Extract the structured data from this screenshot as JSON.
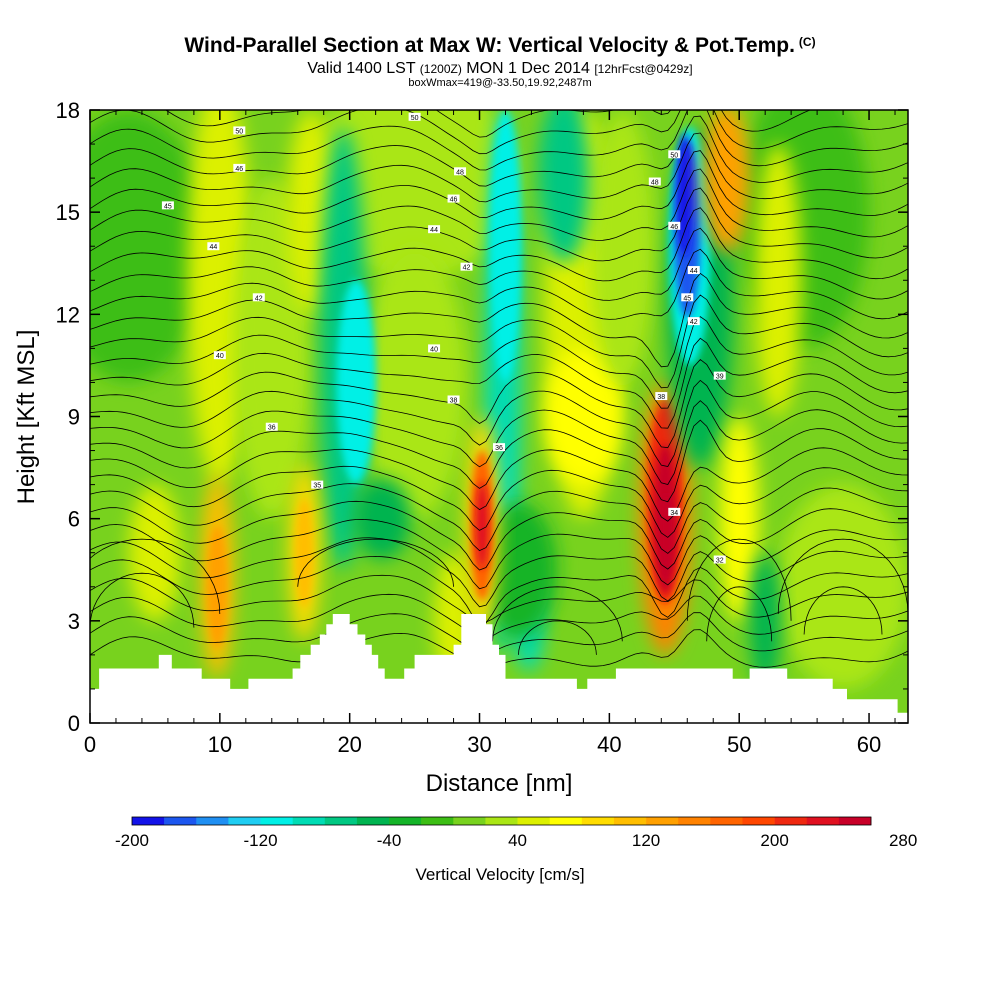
{
  "chart_data": {
    "type": "heatmap",
    "title": "Wind-Parallel Section at Max W: Vertical Velocity & Pot.Temp.",
    "title_mark": "(C)",
    "subtitle_main": "Valid 1400 LST",
    "subtitle_utc": "(1200Z)",
    "subtitle_day": "MON 1 Dec 2014",
    "subtitle_fcst": "[12hrFcst@0429z]",
    "subtitle2": "boxWmax=419@-33.50,19.92,2487m",
    "xlabel": "Distance [nm]",
    "ylabel": "Height [Kft MSL]",
    "xlim": [
      0,
      63
    ],
    "ylim": [
      0,
      18
    ],
    "x_ticks": [
      "0",
      "10",
      "20",
      "30",
      "40",
      "50",
      "60"
    ],
    "y_ticks": [
      "0",
      "3",
      "6",
      "9",
      "12",
      "15",
      "18"
    ],
    "colorbar": {
      "label": "Vertical Velocity [cm/s]",
      "tick_labels": [
        "-200",
        "-120",
        "-40",
        "40",
        "120",
        "200",
        "280"
      ],
      "colors": [
        "#1212e8",
        "#1c56ef",
        "#1f8ff2",
        "#1fcdf2",
        "#00f0e6",
        "#00dcb4",
        "#00c882",
        "#00b450",
        "#14b428",
        "#3cbe14",
        "#78d21e",
        "#aae614",
        "#dcf000",
        "#ffff00",
        "#ffdc00",
        "#ffbe00",
        "#ffa000",
        "#ff8200",
        "#ff6400",
        "#ff4600",
        "#ef2810",
        "#e01020",
        "#c80028"
      ]
    },
    "isentropes": [
      {
        "label": "32",
        "at": [
          48.5,
          4.8
        ]
      },
      {
        "label": "34",
        "at": [
          45.0,
          6.2
        ]
      },
      {
        "label": "35",
        "at": [
          17.5,
          7.0
        ]
      },
      {
        "label": "36",
        "at": [
          14.0,
          8.7
        ]
      },
      {
        "label": "36",
        "at": [
          31.5,
          8.1
        ]
      },
      {
        "label": "38",
        "at": [
          28.0,
          9.5
        ]
      },
      {
        "label": "38",
        "at": [
          44.0,
          9.6
        ]
      },
      {
        "label": "39",
        "at": [
          48.5,
          10.2
        ]
      },
      {
        "label": "40",
        "at": [
          10.0,
          10.8
        ]
      },
      {
        "label": "40",
        "at": [
          26.5,
          11.0
        ]
      },
      {
        "label": "42",
        "at": [
          13.0,
          12.5
        ]
      },
      {
        "label": "42",
        "at": [
          29.0,
          13.4
        ]
      },
      {
        "label": "42",
        "at": [
          46.5,
          11.8
        ]
      },
      {
        "label": "44",
        "at": [
          9.5,
          14.0
        ]
      },
      {
        "label": "44",
        "at": [
          26.5,
          14.5
        ]
      },
      {
        "label": "44",
        "at": [
          46.5,
          13.3
        ]
      },
      {
        "label": "45",
        "at": [
          6.0,
          15.2
        ]
      },
      {
        "label": "45",
        "at": [
          46.0,
          12.5
        ]
      },
      {
        "label": "46",
        "at": [
          11.5,
          16.3
        ]
      },
      {
        "label": "46",
        "at": [
          28.0,
          15.4
        ]
      },
      {
        "label": "46",
        "at": [
          45.0,
          14.6
        ]
      },
      {
        "label": "48",
        "at": [
          28.5,
          16.2
        ]
      },
      {
        "label": "48",
        "at": [
          43.5,
          15.9
        ]
      },
      {
        "label": "50",
        "at": [
          11.5,
          17.4
        ]
      },
      {
        "label": "50",
        "at": [
          25.0,
          17.8
        ]
      },
      {
        "label": "50",
        "at": [
          45.0,
          16.7
        ]
      }
    ],
    "terrain_profile": [
      {
        "x": 0,
        "y": 1.0
      },
      {
        "x": 0.7,
        "y": 1.0
      },
      {
        "x": 0.7,
        "y": 1.6
      },
      {
        "x": 5.3,
        "y": 1.6
      },
      {
        "x": 5.3,
        "y": 2.0
      },
      {
        "x": 6.3,
        "y": 2.0
      },
      {
        "x": 6.3,
        "y": 1.6
      },
      {
        "x": 8.6,
        "y": 1.6
      },
      {
        "x": 8.6,
        "y": 1.3
      },
      {
        "x": 10.8,
        "y": 1.3
      },
      {
        "x": 10.8,
        "y": 1.0
      },
      {
        "x": 12.2,
        "y": 1.0
      },
      {
        "x": 12.2,
        "y": 1.3
      },
      {
        "x": 15.6,
        "y": 1.3
      },
      {
        "x": 15.6,
        "y": 1.6
      },
      {
        "x": 16.2,
        "y": 1.6
      },
      {
        "x": 16.2,
        "y": 2.0
      },
      {
        "x": 17.0,
        "y": 2.0
      },
      {
        "x": 17.0,
        "y": 2.3
      },
      {
        "x": 17.7,
        "y": 2.3
      },
      {
        "x": 17.7,
        "y": 2.6
      },
      {
        "x": 18.2,
        "y": 2.6
      },
      {
        "x": 18.2,
        "y": 2.9
      },
      {
        "x": 18.7,
        "y": 2.9
      },
      {
        "x": 18.7,
        "y": 3.2
      },
      {
        "x": 20.0,
        "y": 3.2
      },
      {
        "x": 20.0,
        "y": 2.9
      },
      {
        "x": 20.6,
        "y": 2.9
      },
      {
        "x": 20.6,
        "y": 2.6
      },
      {
        "x": 21.2,
        "y": 2.6
      },
      {
        "x": 21.2,
        "y": 2.3
      },
      {
        "x": 21.7,
        "y": 2.3
      },
      {
        "x": 21.7,
        "y": 2.0
      },
      {
        "x": 22.2,
        "y": 2.0
      },
      {
        "x": 22.2,
        "y": 1.6
      },
      {
        "x": 22.7,
        "y": 1.6
      },
      {
        "x": 22.7,
        "y": 1.3
      },
      {
        "x": 24.2,
        "y": 1.3
      },
      {
        "x": 24.2,
        "y": 1.6
      },
      {
        "x": 25.0,
        "y": 1.6
      },
      {
        "x": 25.0,
        "y": 2.0
      },
      {
        "x": 28.0,
        "y": 2.0
      },
      {
        "x": 28.0,
        "y": 2.3
      },
      {
        "x": 28.6,
        "y": 2.3
      },
      {
        "x": 28.6,
        "y": 3.2
      },
      {
        "x": 30.5,
        "y": 3.2
      },
      {
        "x": 30.5,
        "y": 2.9
      },
      {
        "x": 31.0,
        "y": 2.9
      },
      {
        "x": 31.0,
        "y": 2.3
      },
      {
        "x": 31.5,
        "y": 2.3
      },
      {
        "x": 31.5,
        "y": 2.0
      },
      {
        "x": 32.0,
        "y": 2.0
      },
      {
        "x": 32.0,
        "y": 1.3
      },
      {
        "x": 37.5,
        "y": 1.3
      },
      {
        "x": 37.5,
        "y": 1.0
      },
      {
        "x": 38.3,
        "y": 1.0
      },
      {
        "x": 38.3,
        "y": 1.3
      },
      {
        "x": 40.5,
        "y": 1.3
      },
      {
        "x": 40.5,
        "y": 1.6
      },
      {
        "x": 49.5,
        "y": 1.6
      },
      {
        "x": 49.5,
        "y": 1.3
      },
      {
        "x": 50.8,
        "y": 1.3
      },
      {
        "x": 50.8,
        "y": 1.6
      },
      {
        "x": 53.7,
        "y": 1.6
      },
      {
        "x": 53.7,
        "y": 1.3
      },
      {
        "x": 57.2,
        "y": 1.3
      },
      {
        "x": 57.2,
        "y": 1.0
      },
      {
        "x": 58.3,
        "y": 1.0
      },
      {
        "x": 58.3,
        "y": 0.7
      },
      {
        "x": 62.2,
        "y": 0.7
      },
      {
        "x": 62.2,
        "y": 0.3
      },
      {
        "x": 63,
        "y": 0.3
      }
    ],
    "features": [
      {
        "name": "strong updraft",
        "x": 44.3,
        "y": 6.0,
        "w_cm_s": 300
      },
      {
        "name": "updraft",
        "x": 30.2,
        "y": 6.0,
        "w_cm_s": 200
      },
      {
        "name": "strong downdraft",
        "x": 46.0,
        "y": 14.0,
        "w_cm_s": -200
      },
      {
        "name": "downdraft",
        "x": 32.0,
        "y": 9.5,
        "w_cm_s": -120
      },
      {
        "name": "downdraft",
        "x": 19.5,
        "y": 11.0,
        "w_cm_s": -100
      },
      {
        "name": "updraft",
        "x": 9.8,
        "y": 4.3,
        "w_cm_s": 120
      },
      {
        "name": "updraft",
        "x": 16.5,
        "y": 5.0,
        "w_cm_s": 110
      }
    ]
  }
}
